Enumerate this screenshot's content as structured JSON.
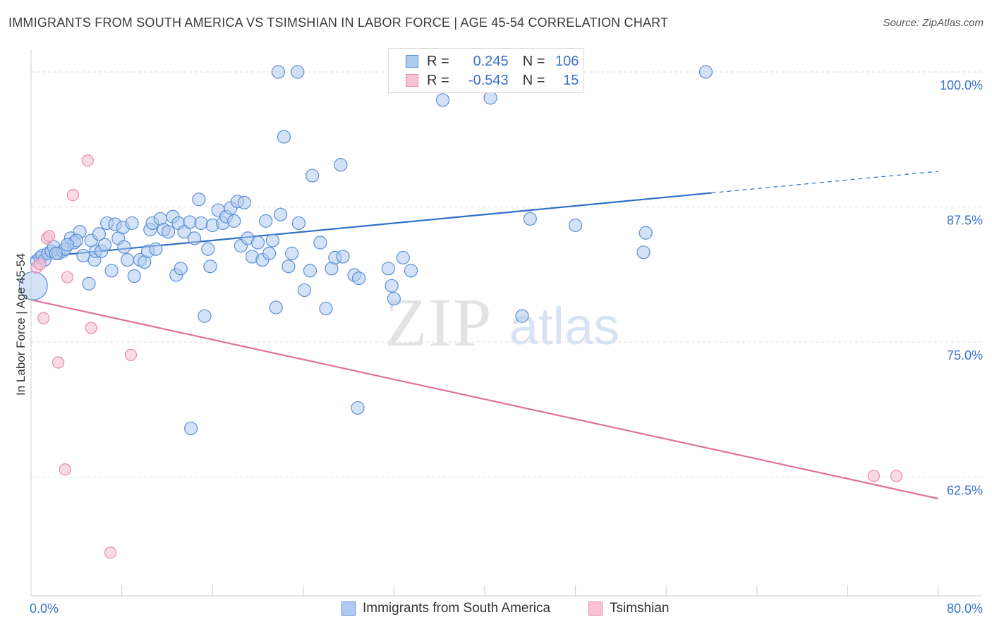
{
  "header": {
    "title": "IMMIGRANTS FROM SOUTH AMERICA VS TSIMSHIAN IN LABOR FORCE | AGE 45-54 CORRELATION CHART",
    "source": "Source: ZipAtlas.com"
  },
  "watermark": {
    "zip": "ZIP",
    "atlas": "atlas"
  },
  "legend_top": {
    "rows": [
      {
        "r_label": "R =",
        "r_value": "0.245",
        "n_label": "N =",
        "n_value": "106"
      },
      {
        "r_label": "R =",
        "r_value": "-0.543",
        "n_label": "N =",
        "n_value": "15"
      }
    ]
  },
  "legend_bottom": {
    "items": [
      "Immigrants from South America",
      "Tsimshian"
    ]
  },
  "colors": {
    "blue_fill": "#aecbef",
    "blue_stroke": "#5b8fd6",
    "blue_line": "#2f6fc8",
    "pink_fill": "#f7c3d4",
    "pink_stroke": "#e88aa8",
    "pink_line": "#e0729a",
    "tick_label": "#3a72c8",
    "grid": "#dddddd"
  },
  "chart_data": {
    "type": "scatter",
    "title": "IMMIGRANTS FROM SOUTH AMERICA VS TSIMSHIAN IN LABOR FORCE | AGE 45-54 CORRELATION CHART",
    "xlabel": "",
    "ylabel": "In Labor Force | Age 45-54",
    "xlim": [
      0,
      80
    ],
    "ylim": [
      51.5,
      101.5
    ],
    "x_tick_labels": [
      "0.0%",
      "80.0%"
    ],
    "y_ticks": [
      62.5,
      75.0,
      87.5,
      100.0
    ],
    "y_tick_labels": [
      "62.5%",
      "75.0%",
      "87.5%",
      "100.0%"
    ],
    "grid": true,
    "legend_position": "top-center",
    "series": [
      {
        "name": "Immigrants from South America",
        "R": 0.245,
        "N": 106,
        "trend": {
          "x0": 0,
          "y0": 82.8,
          "x1": 60,
          "y1": 88.8,
          "dashed_to_x": 80,
          "dashed_to_y": 90.8
        },
        "points": [
          [
            0.2,
            80.2
          ],
          [
            0.5,
            82.5
          ],
          [
            0.8,
            82.8
          ],
          [
            1.0,
            83.0
          ],
          [
            1.2,
            82.6
          ],
          [
            1.5,
            83.2
          ],
          [
            1.8,
            83.4
          ],
          [
            2.0,
            83.8
          ],
          [
            2.4,
            83.2
          ],
          [
            2.8,
            83.4
          ],
          [
            3.0,
            83.6
          ],
          [
            3.5,
            84.6
          ],
          [
            3.8,
            84.2
          ],
          [
            4.3,
            85.2
          ],
          [
            4.0,
            84.4
          ],
          [
            5.1,
            80.4
          ],
          [
            5.3,
            84.4
          ],
          [
            5.6,
            82.6
          ],
          [
            5.7,
            83.4
          ],
          [
            6.2,
            83.4
          ],
          [
            6.5,
            84.0
          ],
          [
            6.7,
            86.0
          ],
          [
            7.1,
            81.6
          ],
          [
            7.4,
            85.9
          ],
          [
            7.7,
            84.6
          ],
          [
            8.1,
            85.6
          ],
          [
            8.2,
            83.8
          ],
          [
            8.5,
            82.6
          ],
          [
            8.9,
            86.0
          ],
          [
            9.1,
            81.1
          ],
          [
            9.6,
            82.6
          ],
          [
            10.0,
            82.4
          ],
          [
            10.3,
            83.4
          ],
          [
            10.5,
            85.4
          ],
          [
            10.7,
            86.0
          ],
          [
            11.0,
            83.6
          ],
          [
            11.4,
            86.4
          ],
          [
            11.7,
            85.4
          ],
          [
            12.1,
            85.2
          ],
          [
            12.5,
            86.6
          ],
          [
            12.8,
            81.2
          ],
          [
            13.0,
            86.0
          ],
          [
            13.2,
            81.8
          ],
          [
            13.5,
            85.2
          ],
          [
            14.0,
            86.1
          ],
          [
            14.4,
            84.6
          ],
          [
            14.8,
            88.2
          ],
          [
            15.0,
            86.0
          ],
          [
            15.3,
            77.4
          ],
          [
            15.6,
            83.6
          ],
          [
            15.8,
            82.0
          ],
          [
            16.0,
            85.8
          ],
          [
            16.5,
            87.2
          ],
          [
            16.9,
            86.0
          ],
          [
            17.2,
            86.6
          ],
          [
            17.6,
            87.4
          ],
          [
            17.9,
            86.2
          ],
          [
            18.2,
            88.0
          ],
          [
            18.5,
            83.9
          ],
          [
            18.8,
            87.9
          ],
          [
            19.1,
            84.6
          ],
          [
            19.5,
            82.9
          ],
          [
            20.0,
            84.2
          ],
          [
            20.4,
            82.6
          ],
          [
            20.7,
            86.2
          ],
          [
            21.0,
            83.2
          ],
          [
            21.3,
            84.4
          ],
          [
            21.6,
            78.2
          ],
          [
            22.0,
            86.8
          ],
          [
            22.3,
            94.0
          ],
          [
            22.7,
            82.0
          ],
          [
            23.0,
            83.2
          ],
          [
            23.6,
            86.0
          ],
          [
            24.1,
            79.8
          ],
          [
            24.6,
            81.6
          ],
          [
            24.8,
            90.4
          ],
          [
            25.5,
            84.2
          ],
          [
            26.0,
            78.1
          ],
          [
            26.5,
            81.8
          ],
          [
            26.8,
            82.8
          ],
          [
            27.3,
            91.4
          ],
          [
            27.5,
            82.9
          ],
          [
            28.5,
            81.2
          ],
          [
            28.9,
            80.9
          ],
          [
            28.8,
            68.9
          ],
          [
            31.5,
            81.8
          ],
          [
            31.8,
            80.2
          ],
          [
            32.0,
            79.0
          ],
          [
            32.8,
            82.8
          ],
          [
            33.5,
            81.6
          ],
          [
            34.0,
            100.0
          ],
          [
            36.3,
            97.4
          ],
          [
            40.5,
            97.6
          ],
          [
            43.3,
            77.4
          ],
          [
            44.0,
            86.4
          ],
          [
            48.0,
            85.8
          ],
          [
            54.0,
            83.3
          ],
          [
            54.2,
            85.1
          ],
          [
            59.5,
            100.0
          ],
          [
            21.8,
            100.0
          ],
          [
            23.5,
            100.0
          ],
          [
            14.1,
            67.0
          ],
          [
            2.2,
            83.2
          ],
          [
            3.2,
            84.0
          ],
          [
            4.6,
            83.0
          ],
          [
            6.0,
            85.0
          ]
        ]
      },
      {
        "name": "Tsimshian",
        "R": -0.543,
        "N": 15,
        "trend": {
          "x0": 0,
          "y0": 78.9,
          "x1": 80,
          "y1": 60.5
        },
        "points": [
          [
            0.5,
            81.9
          ],
          [
            1.1,
            77.2
          ],
          [
            1.4,
            84.6
          ],
          [
            1.6,
            84.8
          ],
          [
            2.4,
            73.1
          ],
          [
            3.2,
            81.0
          ],
          [
            3.7,
            88.6
          ],
          [
            5.0,
            91.8
          ],
          [
            5.3,
            76.3
          ],
          [
            8.8,
            73.8
          ],
          [
            7.0,
            55.5
          ],
          [
            3.0,
            63.2
          ],
          [
            74.3,
            62.6
          ],
          [
            76.3,
            62.6
          ],
          [
            0.8,
            82.2
          ]
        ]
      }
    ]
  }
}
